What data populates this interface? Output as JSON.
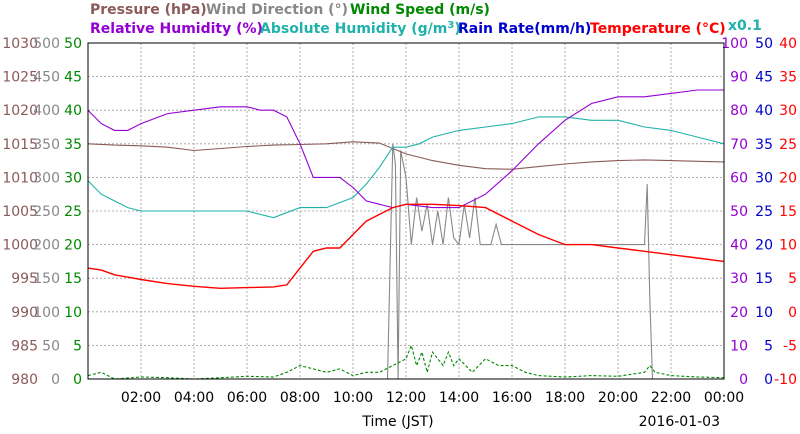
{
  "chart_data": {
    "type": "line",
    "date_label": "2016-01-03",
    "xlabel": "Time (JST)",
    "x_ticks": [
      "02:00",
      "04:00",
      "06:00",
      "08:00",
      "10:00",
      "12:00",
      "14:00",
      "16:00",
      "18:00",
      "20:00",
      "22:00",
      "00:00"
    ],
    "x_range_hours": [
      0,
      24
    ],
    "grid": true,
    "legend": {
      "row1": [
        {
          "text": "Pressure (hPa)",
          "color": "#8b5a5a"
        },
        {
          "text": "Wind Direction (°)",
          "color": "#888888"
        },
        {
          "text": "Wind Speed (m/s)",
          "color": "#008800"
        }
      ],
      "row2": [
        {
          "text": "Relative Humidity (%)",
          "color": "#9400d3"
        },
        {
          "text": "Absolute Humidity (g/m",
          "color": "#20b2aa",
          "sup": "3",
          "tail": ")"
        },
        {
          "text": "Rain Rate(mm/h)",
          "color": "#0000cd"
        },
        {
          "text": "Temperature (°C)",
          "color": "#ff0000"
        }
      ],
      "scale_note": {
        "text": "x0.1",
        "color": "#20b2aa"
      }
    },
    "axes": {
      "pressure": {
        "color": "#8b5a5a",
        "ticks": [
          "1030",
          "1025",
          "1020",
          "1015",
          "1010",
          "1005",
          "1000",
          "995",
          "990",
          "985",
          "980"
        ],
        "range": [
          980,
          1030
        ]
      },
      "wind_direction": {
        "color": "#888888",
        "ticks": [
          "500",
          "450",
          "400",
          "350",
          "300",
          "250",
          "200",
          "150",
          "100",
          "50",
          "0"
        ],
        "range": [
          0,
          500
        ]
      },
      "wind_speed": {
        "color": "#008800",
        "ticks": [
          "50",
          "45",
          "40",
          "35",
          "30",
          "25",
          "20",
          "15",
          "10",
          "5",
          "0"
        ],
        "range": [
          0,
          50
        ]
      },
      "humidity": {
        "color": "#9400d3",
        "ticks": [
          "100",
          "90",
          "80",
          "70",
          "60",
          "50",
          "40",
          "30",
          "20",
          "10",
          "0"
        ],
        "range": [
          0,
          100
        ]
      },
      "rain_rate": {
        "color": "#0000cd",
        "ticks": [
          "50",
          "45",
          "40",
          "35",
          "30",
          "25",
          "20",
          "15",
          "10",
          "5",
          "0"
        ],
        "range": [
          0,
          50
        ]
      },
      "temperature": {
        "color": "#ff0000",
        "ticks": [
          "40",
          "35",
          "30",
          "25",
          "20",
          "15",
          "10",
          "5",
          "0",
          "-5",
          "-10"
        ],
        "range": [
          -10,
          40
        ]
      }
    },
    "series": [
      {
        "name": "Pressure (hPa)",
        "color": "#8b5a5a",
        "axis": "pressure",
        "x": [
          0,
          1,
          2,
          3,
          4,
          5,
          6,
          7,
          8,
          9,
          10,
          11,
          12,
          13,
          14,
          15,
          16,
          17,
          18,
          19,
          20,
          21,
          22,
          23,
          24
        ],
        "y": [
          1015.0,
          1014.8,
          1014.7,
          1014.5,
          1014.0,
          1014.3,
          1014.6,
          1014.8,
          1014.9,
          1015.0,
          1015.3,
          1015.1,
          1013.5,
          1012.5,
          1011.8,
          1011.3,
          1011.2,
          1011.6,
          1012.0,
          1012.3,
          1012.5,
          1012.6,
          1012.5,
          1012.4,
          1012.3
        ]
      },
      {
        "name": "Relative Humidity (%)",
        "color": "#9400d3",
        "axis": "humidity",
        "x": [
          0,
          0.5,
          1,
          1.5,
          2,
          3,
          4,
          5,
          6,
          6.5,
          7,
          7.5,
          8,
          8.5,
          9,
          9.5,
          10,
          10.5,
          11,
          11.5,
          12,
          13,
          14,
          15,
          16,
          17,
          18,
          19,
          20,
          21,
          22,
          23,
          24
        ],
        "y": [
          80,
          76,
          74,
          74,
          76,
          79,
          80,
          81,
          81,
          80,
          80,
          78,
          70,
          60,
          60,
          60,
          57,
          53,
          52,
          51,
          52,
          51,
          51,
          55,
          62,
          70,
          77,
          82,
          84,
          84,
          85,
          86,
          86
        ]
      },
      {
        "name": "Absolute Humidity (g/m3)",
        "color": "#20b2aa",
        "axis": "humidity",
        "x": [
          0,
          0.5,
          1,
          1.5,
          2,
          3,
          4,
          5,
          6,
          7,
          8,
          9,
          10,
          10.5,
          11,
          11.5,
          12,
          12.5,
          13,
          14,
          15,
          16,
          17,
          18,
          19,
          20,
          21,
          22,
          23,
          24
        ],
        "y": [
          59,
          55,
          53,
          51,
          50,
          50,
          50,
          50,
          50,
          48,
          51,
          51,
          54,
          58,
          63,
          69,
          69,
          70,
          72,
          74,
          75,
          76,
          78,
          78,
          77,
          77,
          75,
          74,
          72,
          70
        ]
      },
      {
        "name": "Temperature (°C)",
        "color": "#ff0000",
        "axis": "temperature",
        "x": [
          0,
          0.5,
          1,
          2,
          3,
          4,
          5,
          6,
          7,
          7.5,
          8,
          8.5,
          9,
          9.5,
          10,
          10.5,
          11,
          11.5,
          12,
          12.5,
          13,
          14,
          15,
          16,
          17,
          18,
          19,
          20,
          21,
          22,
          23,
          24
        ],
        "y": [
          6.5,
          6.2,
          5.5,
          4.8,
          4.2,
          3.8,
          3.5,
          3.6,
          3.7,
          4.0,
          6.5,
          9.0,
          9.5,
          9.5,
          11.5,
          13.5,
          14.5,
          15.5,
          16.0,
          16.0,
          16.0,
          15.8,
          15.5,
          13.5,
          11.5,
          10.0,
          10.0,
          9.5,
          9.0,
          8.5,
          8.0,
          7.5
        ]
      },
      {
        "name": "Wind Direction (°)",
        "color": "#888888",
        "axis": "wind_direction",
        "x": [
          0,
          11.3,
          11.5,
          11.6,
          11.7,
          11.8,
          12.0,
          12.2,
          12.4,
          12.6,
          12.8,
          13.0,
          13.2,
          13.4,
          13.6,
          13.8,
          14.0,
          14.2,
          14.4,
          14.6,
          14.8,
          15.0,
          15.2,
          15.4,
          15.6,
          16.0,
          17.0,
          18.0,
          19.0,
          20.0,
          21.0,
          21.1,
          21.2,
          21.3,
          21.4,
          21.6
        ],
        "y": [
          0,
          0,
          350,
          320,
          0,
          340,
          300,
          200,
          270,
          220,
          260,
          200,
          250,
          200,
          270,
          210,
          200,
          260,
          210,
          270,
          200,
          200,
          200,
          230,
          200,
          200,
          200,
          200,
          200,
          200,
          200,
          290,
          120,
          0,
          0,
          0
        ]
      },
      {
        "name": "Wind Speed (m/s)",
        "color": "#008800",
        "axis": "wind_speed",
        "x": [
          0,
          0.5,
          1,
          2,
          3,
          4,
          5,
          6,
          7,
          7.5,
          8,
          8.5,
          9,
          9.5,
          10,
          10.5,
          11,
          11.5,
          12,
          12.2,
          12.4,
          12.6,
          12.8,
          13.0,
          13.2,
          13.4,
          13.6,
          13.8,
          14.0,
          14.5,
          15.0,
          15.5,
          16.0,
          16.5,
          17,
          18,
          19,
          20,
          21,
          21.2,
          21.4,
          22,
          23,
          24
        ],
        "y": [
          0.5,
          1,
          0,
          0.3,
          0.2,
          0,
          0.2,
          0.4,
          0.3,
          1,
          2,
          1.5,
          1,
          1.5,
          0.5,
          1,
          1,
          2,
          3,
          5,
          2,
          4,
          1,
          4,
          3,
          2,
          4,
          2,
          3,
          1,
          3,
          2,
          2,
          1,
          0.5,
          0.3,
          0.5,
          0.4,
          1,
          2,
          1,
          0.5,
          0.3,
          0.2
        ]
      },
      {
        "name": "Rain Rate(mm/h)",
        "color": "#0000cd",
        "axis": "rain_rate",
        "x": [
          0,
          24
        ],
        "y": [
          0,
          0
        ]
      }
    ]
  }
}
